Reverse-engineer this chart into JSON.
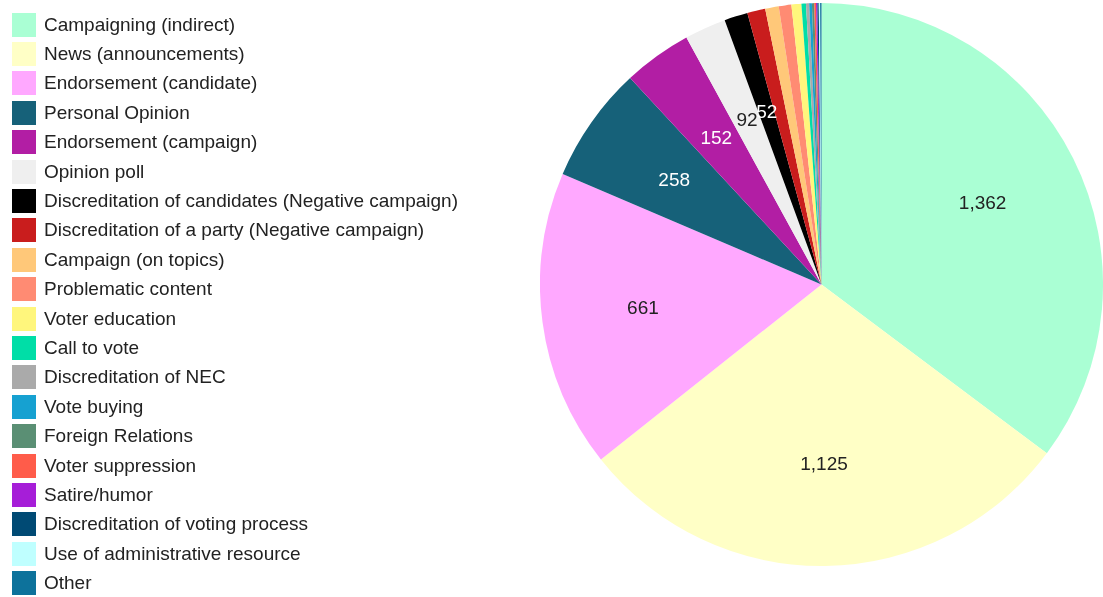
{
  "chart_data": {
    "type": "pie",
    "categories": [
      "Campaigning (indirect)",
      "News (announcements)",
      "Endorsement (candidate)",
      "Personal Opinion",
      "Endorsement (campaign)",
      "Opinion poll",
      "Discreditation of candidates (Negative campaign)",
      "Discreditation of a party (Negative campaign)",
      "Campaign (on topics)",
      "Problematic content",
      "Voter education",
      "Call to vote",
      "Discreditation of NEC",
      "Vote buying",
      "Foreign Relations",
      "Voter suppression",
      "Satire/humor",
      "Discreditation of voting process",
      "Use of administrative resource",
      "Other"
    ],
    "values": [
      1362,
      1125,
      661,
      258,
      152,
      92,
      52,
      40,
      30,
      28,
      22,
      10,
      7,
      6,
      5,
      4,
      3,
      3,
      3,
      3
    ],
    "value_labels": [
      "1,362",
      "1,125",
      "661",
      "258",
      "152",
      "92",
      "52",
      null,
      null,
      null,
      null,
      null,
      null,
      null,
      null,
      null,
      null,
      null,
      null,
      null
    ],
    "colors": [
      "#aaffd4",
      "#ffffc6",
      "#ffa8ff",
      "#166179",
      "#b21ea4",
      "#efefef",
      "#000000",
      "#c91d1d",
      "#ffc879",
      "#ff8b73",
      "#fff67c",
      "#00dea7",
      "#aaaaaa",
      "#16a1d1",
      "#5a8f74",
      "#ff5c4a",
      "#a61ed8",
      "#004a74",
      "#bfffff",
      "#0d729b"
    ],
    "legend": "left"
  }
}
